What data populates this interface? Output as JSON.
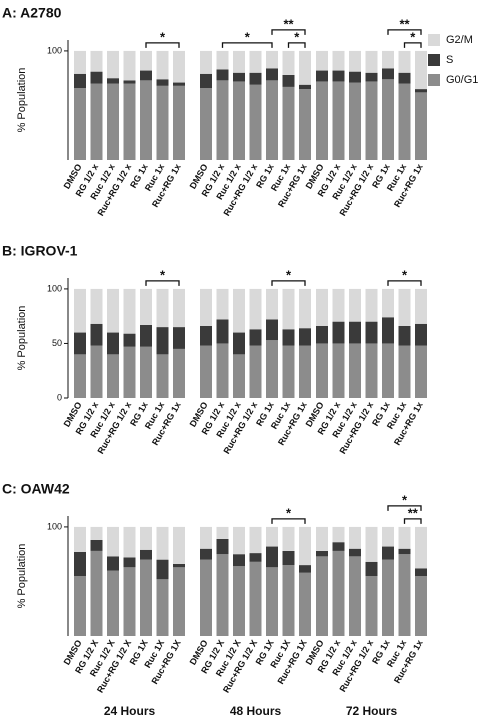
{
  "chart_data": [
    {
      "type": "bar",
      "title": "A: A2780",
      "ylabel": "% Population",
      "categories": [
        "DMSO",
        "RG 1/2 x",
        "Ruc 1/2 x",
        "Ruc+RG 1/2 x",
        "RG 1x",
        "Ruc 1x",
        "Ruc+RG 1x",
        "DMSO",
        "RG 1/2 x",
        "Ruc 1/2 x",
        "Ruc+RG 1/2 x",
        "RG 1x",
        "Ruc 1x",
        "Ruc+RG 1x",
        "DMSO",
        "RG 1/2 x",
        "Ruc 1/2 x",
        "Ruc+RG 1/2 x",
        "RG 1x",
        "Ruc 1x",
        "Ruc+RG 1x"
      ],
      "series": [
        {
          "name": "G0/G1",
          "color": "#8c8c8c",
          "values": [
            66,
            70,
            70,
            70,
            73,
            68,
            68,
            66,
            73,
            72,
            69,
            73,
            67,
            65,
            72,
            72,
            71,
            72,
            74,
            70,
            62
          ]
        },
        {
          "name": "S",
          "color": "#3a3a3a",
          "values": [
            13,
            11,
            5,
            3,
            9,
            6,
            3,
            13,
            10,
            8,
            11,
            11,
            11,
            4,
            10,
            10,
            10,
            8,
            10,
            10,
            3
          ]
        },
        {
          "name": "G2/M",
          "color": "#d9d9d9",
          "values": [
            21,
            19,
            25,
            27,
            18,
            26,
            29,
            21,
            17,
            20,
            20,
            16,
            22,
            31,
            18,
            18,
            19,
            20,
            16,
            20,
            35
          ]
        }
      ],
      "ylim": [
        0,
        110
      ],
      "yticks": [
        100
      ],
      "legend": "right",
      "annotations": [
        {
          "text": "*",
          "from": 4,
          "to": 6
        },
        {
          "text": "*",
          "from": 8,
          "to": 11
        },
        {
          "text": "**",
          "from": 11,
          "to": 13
        },
        {
          "text": "*",
          "from": 12,
          "to": 13
        },
        {
          "text": "**",
          "from": 18,
          "to": 20
        },
        {
          "text": "*",
          "from": 19,
          "to": 20
        }
      ]
    },
    {
      "type": "bar",
      "title": "B: IGROV-1",
      "ylabel": "% Population",
      "categories": [
        "DMSO",
        "RG 1/2 x",
        "Ruc 1/2 x",
        "Ruc+RG 1/2 x",
        "RG 1x",
        "Ruc 1x",
        "Ruc+RG 1x",
        "DMSO",
        "RG 1/2 x",
        "Ruc 1/2 x",
        "Ruc+RG 1/2 x",
        "RG 1x",
        "Ruc 1x",
        "Ruc+RG 1x",
        "DMSO",
        "RG 1/2 x",
        "Ruc 1/2 x",
        "Ruc+RG 1/2 x",
        "RG 1x",
        "Ruc 1x",
        "Ruc+RG 1x"
      ],
      "series": [
        {
          "name": "G0/G1",
          "color": "#8c8c8c",
          "values": [
            40,
            48,
            40,
            47,
            47,
            40,
            45,
            48,
            50,
            40,
            48,
            53,
            48,
            48,
            50,
            50,
            50,
            50,
            50,
            48,
            48
          ]
        },
        {
          "name": "S",
          "color": "#3a3a3a",
          "values": [
            20,
            20,
            20,
            12,
            20,
            25,
            20,
            18,
            22,
            20,
            15,
            19,
            15,
            16,
            16,
            20,
            20,
            20,
            24,
            18,
            20
          ]
        },
        {
          "name": "G2/M",
          "color": "#d9d9d9",
          "values": [
            40,
            32,
            40,
            41,
            33,
            35,
            35,
            34,
            28,
            40,
            37,
            28,
            37,
            36,
            34,
            30,
            30,
            30,
            26,
            34,
            32
          ]
        }
      ],
      "ylim": [
        0,
        110
      ],
      "yticks": [
        0,
        50,
        100
      ],
      "annotations": [
        {
          "text": "*",
          "from": 4,
          "to": 6
        },
        {
          "text": "*",
          "from": 11,
          "to": 13
        },
        {
          "text": "*",
          "from": 18,
          "to": 20
        }
      ]
    },
    {
      "type": "bar",
      "title": "C: OAW42",
      "ylabel": "% Population",
      "categories": [
        "DMSO",
        "RG 1/2 X",
        "Ruc 1/2 X",
        "Ruc+RG 1/2 X",
        "RG 1X",
        "Ruc 1X",
        "Ruc+RG 1X",
        "DMSO",
        "RG 1/2 X",
        "Ruc 1/2 X",
        "Ruc+RG 1/2 X",
        "RG 1X",
        "Ruc 1X",
        "Ruc+RG 1X",
        "DMSO",
        "RG 1/2 x",
        "Ruc 1/2 x",
        "Ruc+RG 1/2 x",
        "RG 1x",
        "Ruc 1x",
        "Ruc+RG 1x"
      ],
      "series": [
        {
          "name": "G0/G1",
          "color": "#8c8c8c",
          "values": [
            55,
            78,
            60,
            63,
            70,
            52,
            63,
            70,
            75,
            64,
            68,
            63,
            65,
            58,
            73,
            78,
            73,
            55,
            70,
            75,
            55
          ]
        },
        {
          "name": "S",
          "color": "#3a3a3a",
          "values": [
            22,
            10,
            13,
            9,
            9,
            18,
            3,
            10,
            14,
            11,
            8,
            19,
            13,
            7,
            5,
            8,
            7,
            13,
            12,
            5,
            7
          ]
        },
        {
          "name": "G2/M",
          "color": "#d9d9d9",
          "values": [
            23,
            12,
            27,
            28,
            21,
            30,
            34,
            20,
            11,
            25,
            24,
            18,
            22,
            35,
            22,
            14,
            20,
            32,
            18,
            20,
            38
          ]
        }
      ],
      "ylim": [
        0,
        110
      ],
      "yticks": [
        100
      ],
      "annotations": [
        {
          "text": "*",
          "from": 11,
          "to": 13
        },
        {
          "text": "*",
          "from": 18,
          "to": 20
        },
        {
          "text": "**",
          "from": 19,
          "to": 20
        }
      ]
    }
  ],
  "group_labels": [
    "24 Hours",
    "48 Hours",
    "72 Hours"
  ]
}
